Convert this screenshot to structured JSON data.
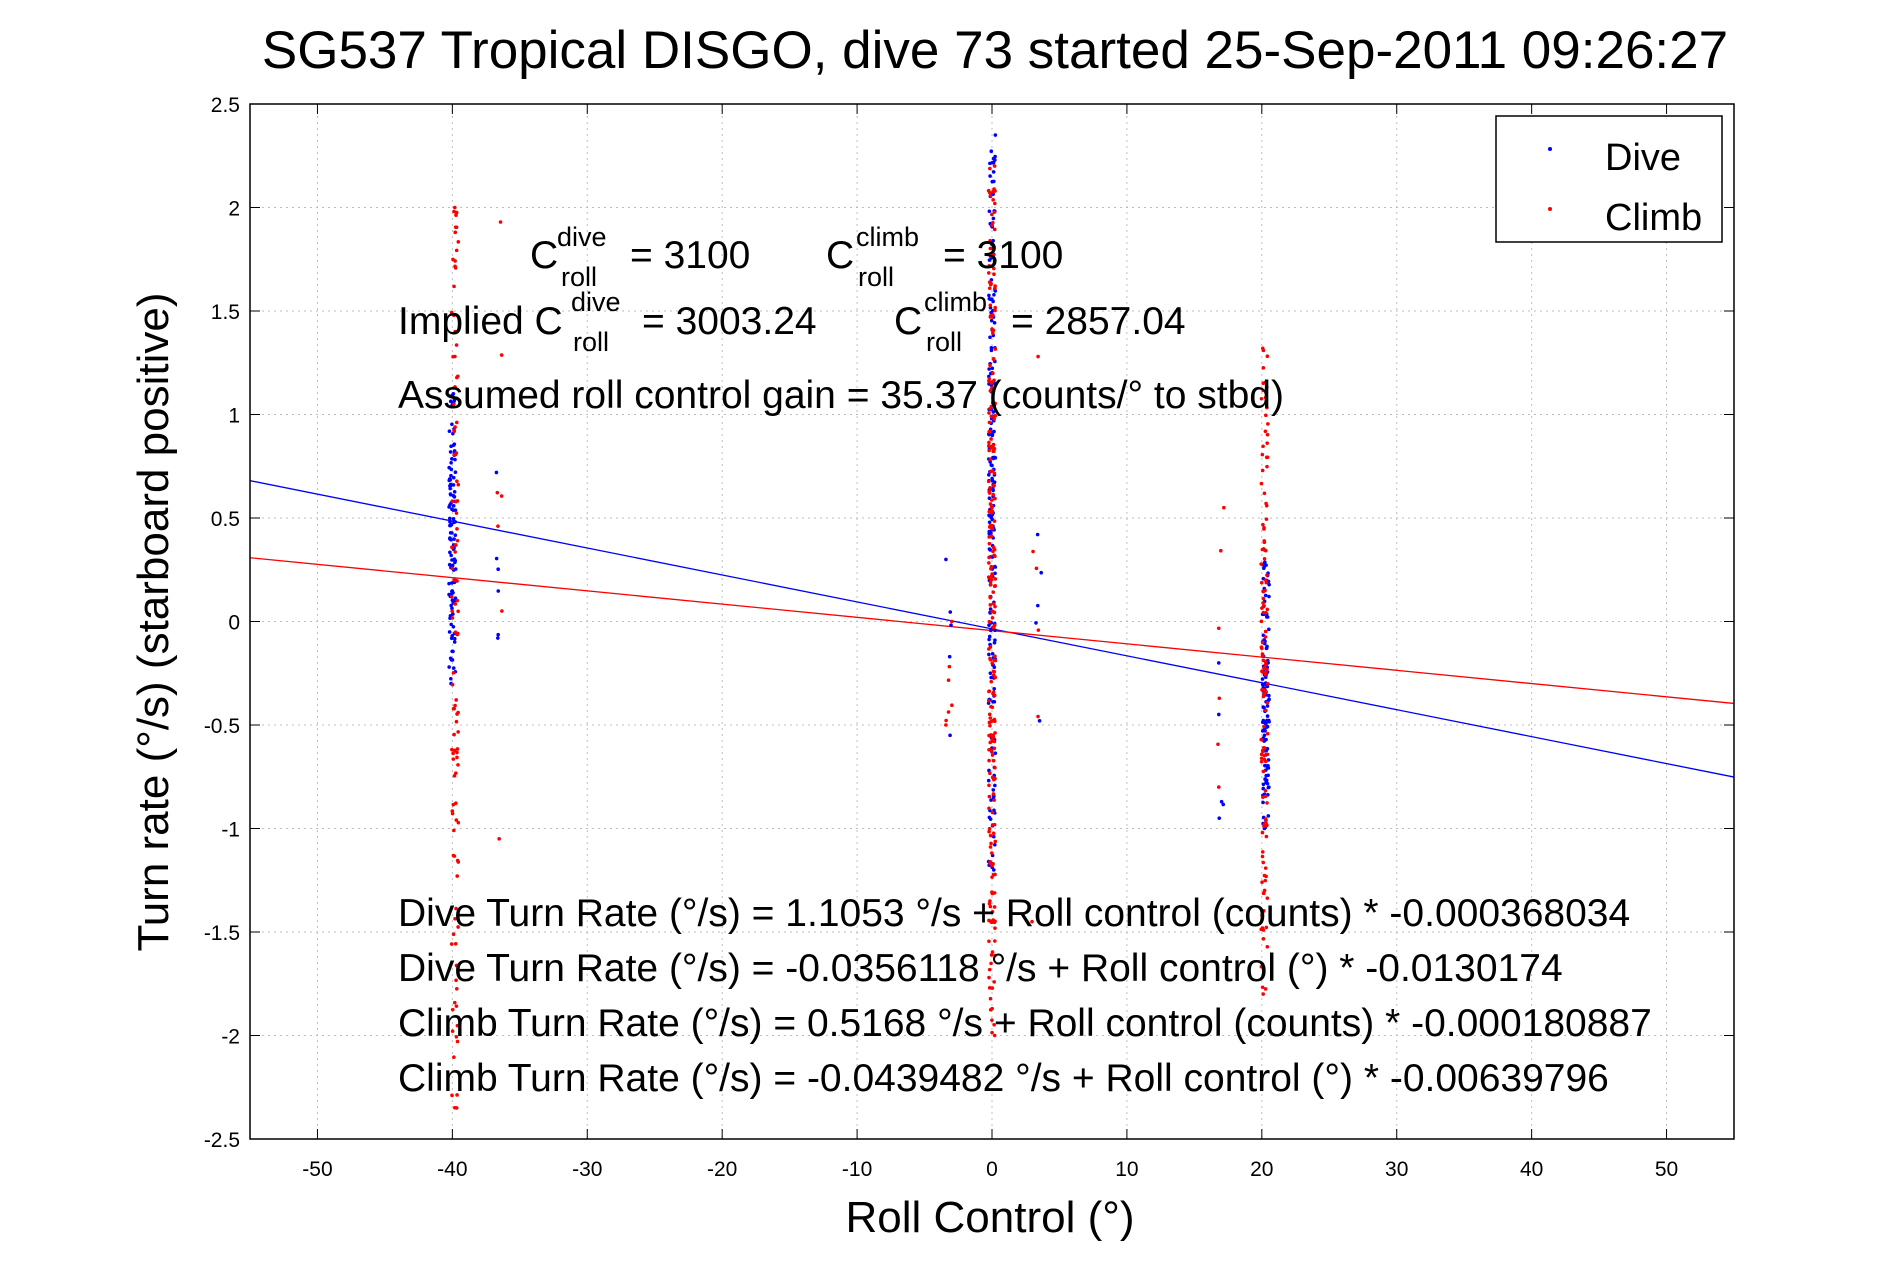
{
  "chart_data": {
    "type": "scatter",
    "title": "SG537 Tropical DISGO, dive 73 started 25-Sep-2011 09:26:27",
    "xlabel": "Roll Control (°)",
    "ylabel": "Turn rate (°/s) (starboard positive)",
    "xlim": [
      -55,
      55
    ],
    "ylim": [
      -2.5,
      2.5
    ],
    "x_ticks": [
      -50,
      -40,
      -30,
      -20,
      -10,
      0,
      10,
      20,
      30,
      40,
      50
    ],
    "y_ticks": [
      -2.5,
      -2,
      -1.5,
      -1,
      -0.5,
      0,
      0.5,
      1,
      1.5,
      2,
      2.5
    ],
    "x_tick_labels": [
      "-50",
      "-40",
      "-30",
      "-20",
      "-10",
      "0",
      "10",
      "20",
      "30",
      "40",
      "50"
    ],
    "y_tick_labels": [
      "-2.5",
      "-2",
      "-1.5",
      "-1",
      "-0.5",
      "0",
      "0.5",
      "1",
      "1.5",
      "2",
      "2.5"
    ],
    "grid": true,
    "legend_position": "top-right",
    "series": [
      {
        "name": "Dive",
        "color": "#0000ff",
        "marker": "point",
        "clusters": [
          {
            "x": -40,
            "y_min": -0.3,
            "y_max": 1.1,
            "count": 120
          },
          {
            "x": -36.8,
            "y_min": -0.08,
            "y_max": 0.72,
            "count": 6
          },
          {
            "x": 0,
            "y_min": -1.2,
            "y_max": 2.35,
            "count": 200
          },
          {
            "x": -3.2,
            "y_min": -0.55,
            "y_max": 0.3,
            "count": 5
          },
          {
            "x": 3.5,
            "y_min": -0.48,
            "y_max": 0.42,
            "count": 5
          },
          {
            "x": 20.3,
            "y_min": -1.0,
            "y_max": 0.35,
            "count": 120
          },
          {
            "x": 17.0,
            "y_min": -0.95,
            "y_max": -0.2,
            "count": 5
          }
        ],
        "fit_line": {
          "intercept": -0.0356118,
          "slope": -0.0130174
        }
      },
      {
        "name": "Climb",
        "color": "#ff0000",
        "marker": "point",
        "clusters": [
          {
            "x": -39.8,
            "y_min": -2.35,
            "y_max": 2.0,
            "count": 110
          },
          {
            "x": -36.5,
            "y_min": -1.05,
            "y_max": 1.93,
            "count": 7
          },
          {
            "x": 0,
            "y_min": -2.0,
            "y_max": 2.2,
            "count": 250
          },
          {
            "x": -3.2,
            "y_min": -0.5,
            "y_max": 0,
            "count": 7
          },
          {
            "x": 3.2,
            "y_min": -1.45,
            "y_max": 1.28,
            "count": 6
          },
          {
            "x": 20.2,
            "y_min": -1.8,
            "y_max": 1.32,
            "count": 130
          },
          {
            "x": 17.0,
            "y_min": -0.8,
            "y_max": 0.55,
            "count": 6
          }
        ],
        "fit_line": {
          "intercept": -0.0439482,
          "slope": -0.00639796
        }
      }
    ],
    "annotations": {
      "c_roll_dive": {
        "C": "C",
        "sup": "dive",
        "sub": "roll",
        "value": "= 3100"
      },
      "c_roll_climb": {
        "C": "C",
        "sup": "climb",
        "sub": "roll",
        "value": "= 3100"
      },
      "implied_dive": {
        "prefix": "Implied C",
        "sup": "dive",
        "sub": "roll",
        "value": "= 3003.24"
      },
      "implied_climb": {
        "C": "C",
        "sup": "climb",
        "sub": "roll",
        "value": "= 2857.04"
      },
      "gain": "Assumed roll control gain = 35.37 (counts/° to stbd)",
      "eq1": "Dive Turn Rate (°/s) = 1.1053 °/s + Roll control (counts) * -0.000368034",
      "eq2": "Dive Turn Rate (°/s) = -0.0356118 °/s + Roll control (°) * -0.0130174",
      "eq3": "Climb Turn Rate (°/s) = 0.5168 °/s + Roll control (counts) * -0.000180887",
      "eq4": "Climb Turn Rate (°/s) = -0.0439482 °/s + Roll control (°) * -0.00639796"
    }
  }
}
